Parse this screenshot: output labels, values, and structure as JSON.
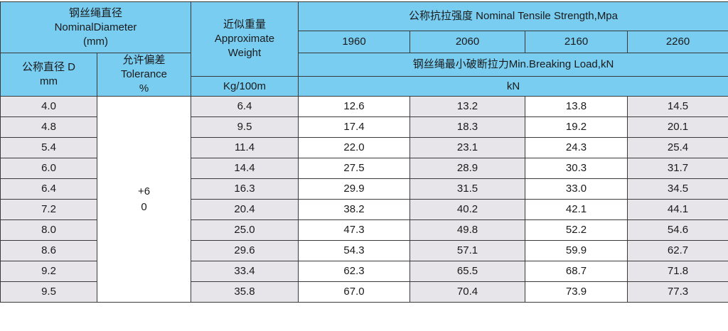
{
  "header": {
    "nominal_diameter": [
      "钢丝绳直径",
      "NominalDiameter",
      "(mm)"
    ],
    "diameter_d": [
      "公称直径 D",
      "mm"
    ],
    "tolerance": [
      "允许偏差",
      "Tolerance",
      "%"
    ],
    "weight": [
      "近似重量",
      "Approximate",
      "Weight"
    ],
    "weight_unit": "Kg/100m",
    "tensile_strength": "公称抗拉强度 Nominal Tensile Strength,Mpa",
    "grades": [
      "1960",
      "2060",
      "2160",
      "2260"
    ],
    "breaking_load": "钢丝绳最小破断拉力Min.Breaking Load,kN",
    "load_unit": "kN"
  },
  "tolerance_value": [
    "+6",
    "0"
  ],
  "rows": [
    {
      "d": "4.0",
      "w": "6.4",
      "loads": [
        "12.6",
        "13.2",
        "13.8",
        "14.5"
      ]
    },
    {
      "d": "4.8",
      "w": "9.5",
      "loads": [
        "17.4",
        "18.3",
        "19.2",
        "20.1"
      ]
    },
    {
      "d": "5.4",
      "w": "11.4",
      "loads": [
        "22.0",
        "23.1",
        "24.3",
        "25.4"
      ]
    },
    {
      "d": "6.0",
      "w": "14.4",
      "loads": [
        "27.5",
        "28.9",
        "30.3",
        "31.7"
      ]
    },
    {
      "d": "6.4",
      "w": "16.3",
      "loads": [
        "29.9",
        "31.5",
        "33.0",
        "34.5"
      ]
    },
    {
      "d": "7.2",
      "w": "20.4",
      "loads": [
        "38.2",
        "40.2",
        "42.1",
        "44.1"
      ]
    },
    {
      "d": "8.0",
      "w": "25.0",
      "loads": [
        "47.3",
        "49.8",
        "52.2",
        "54.6"
      ]
    },
    {
      "d": "8.6",
      "w": "29.6",
      "loads": [
        "54.3",
        "57.1",
        "59.9",
        "62.7"
      ]
    },
    {
      "d": "9.2",
      "w": "33.4",
      "loads": [
        "62.3",
        "65.5",
        "68.7",
        "71.8"
      ]
    },
    {
      "d": "9.5",
      "w": "35.8",
      "loads": [
        "67.0",
        "70.4",
        "73.9",
        "77.3"
      ]
    }
  ],
  "colors": {
    "header": "#78cdf1",
    "gray_cell": "#e7e5ea",
    "white_cell": "#ffffff",
    "border": "#3a3a3a"
  }
}
